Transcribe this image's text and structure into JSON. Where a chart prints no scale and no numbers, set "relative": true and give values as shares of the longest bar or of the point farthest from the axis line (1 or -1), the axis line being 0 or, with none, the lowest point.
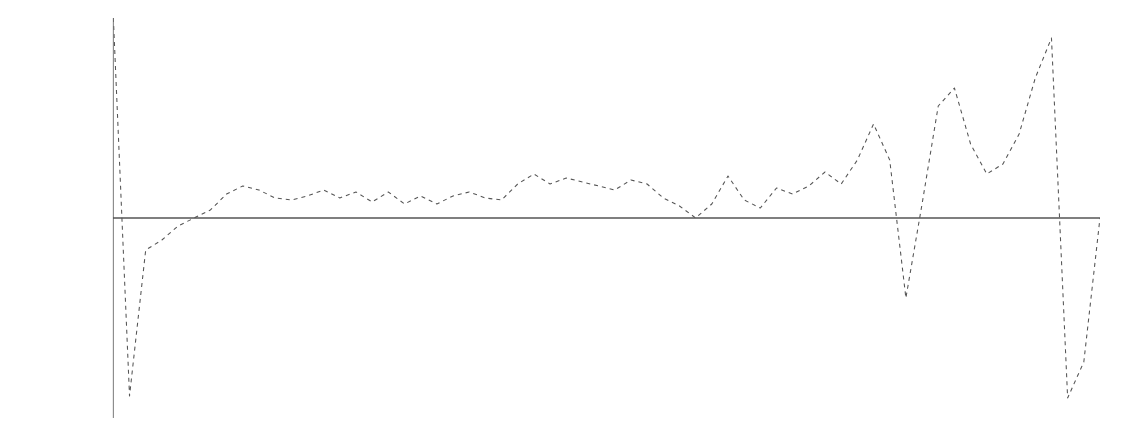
{
  "chart_data": {
    "type": "line",
    "relative": true,
    "color": "#555555",
    "line_style": "dashed",
    "categories": [
      null,
      null,
      null,
      null,
      null,
      null,
      null,
      null,
      null,
      null,
      null,
      null,
      null,
      null,
      null,
      null,
      null,
      null,
      null,
      null,
      null,
      null,
      null,
      null,
      null,
      null,
      null,
      null,
      null,
      null,
      null,
      null,
      null,
      null,
      null,
      null,
      null,
      null,
      null,
      null,
      null,
      null,
      null,
      null,
      null,
      null,
      null,
      null,
      null,
      null,
      null,
      null,
      null,
      null,
      null,
      null,
      null,
      null,
      null,
      null,
      null,
      null
    ],
    "values": [
      1.0,
      -0.89,
      -0.16,
      -0.11,
      -0.04,
      0,
      0.04,
      0.12,
      0.16,
      0.14,
      0.1,
      0.09,
      0.11,
      0.14,
      0.1,
      0.13,
      0.08,
      0.13,
      0.07,
      0.11,
      0.07,
      0.11,
      0.13,
      0.1,
      0.09,
      0.17,
      0.22,
      0.17,
      0.2,
      0.18,
      0.16,
      0.14,
      0.19,
      0.17,
      0.1,
      0.06,
      0,
      0.07,
      0.21,
      0.09,
      0.05,
      0.15,
      0.12,
      0.16,
      0.23,
      0.17,
      0.29,
      0.47,
      0.29,
      -0.4,
      0.07,
      0.56,
      0.65,
      0.37,
      0.22,
      0.27,
      0.42,
      0.7,
      0.9,
      -0.9,
      -0.72,
      0
    ]
  }
}
